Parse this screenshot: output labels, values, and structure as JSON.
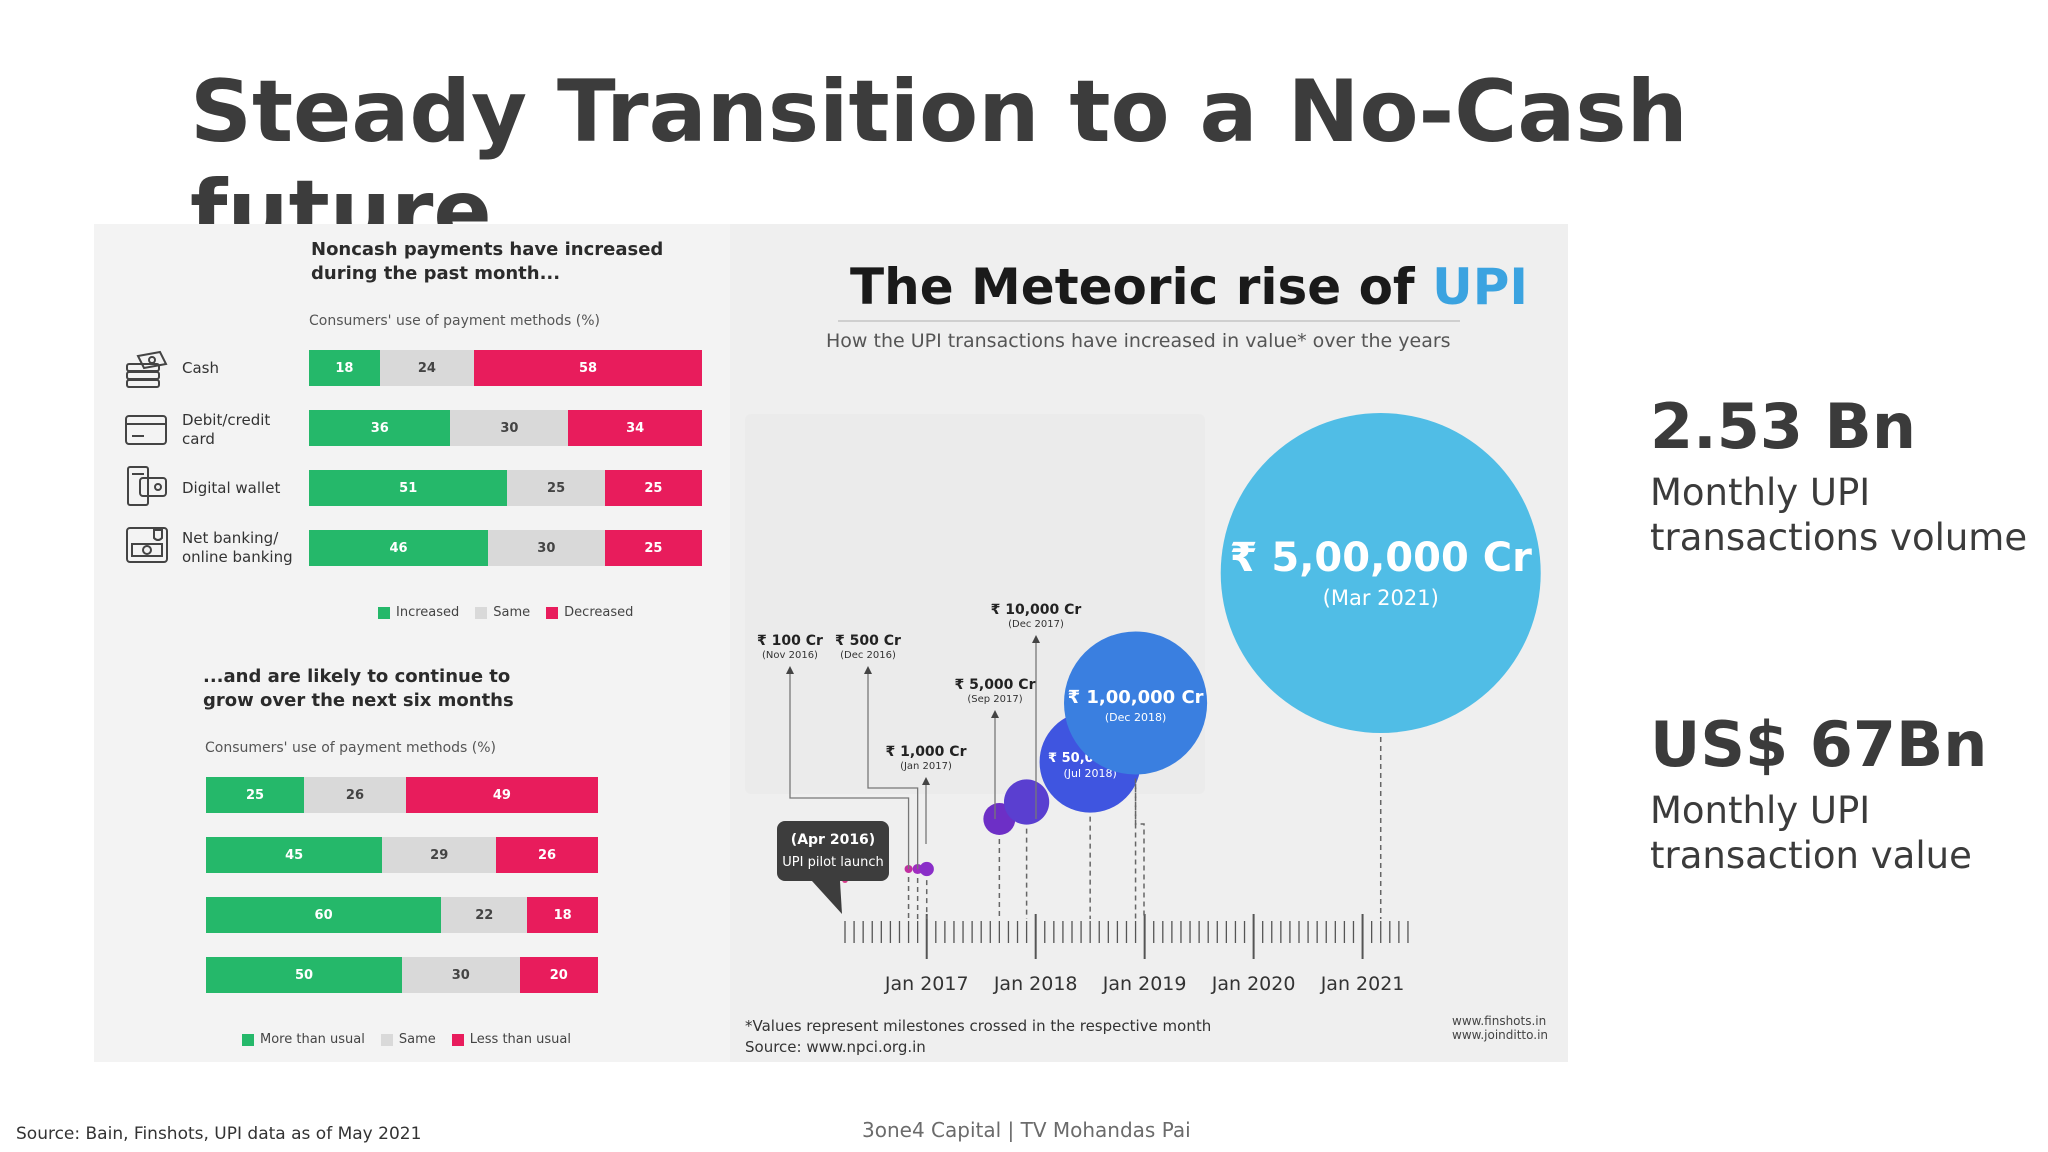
{
  "title": "Steady Transition to a No-Cash future",
  "left": {
    "top_heading": "Noncash payments have increased during the past month...",
    "top_subhead": "Consumers' use of payment methods (%)",
    "rows": [
      {
        "label": "Cash",
        "icon": "cash-icon"
      },
      {
        "label": "Debit/credit card",
        "icon": "card-icon"
      },
      {
        "label": "Digital wallet",
        "icon": "wallet-icon"
      },
      {
        "label": "Net banking/ online banking",
        "icon": "bank-icon"
      }
    ],
    "top_legend": {
      "increased": "Increased",
      "same": "Same",
      "decreased": "Decreased"
    },
    "bottom_heading": "...and are likely to continue to grow over the next six months",
    "bottom_subhead": "Consumers' use of payment methods (%)",
    "bottom_legend": {
      "more": "More than usual",
      "same": "Same",
      "less": "Less than usual"
    },
    "colors": {
      "green": "#25b86a",
      "gray": "#d9d9d9",
      "red": "#e81c5c"
    }
  },
  "chart_data": [
    {
      "type": "bar",
      "stacked": true,
      "title": "Noncash payments have increased during the past month...",
      "subtitle": "Consumers' use of payment methods (%)",
      "categories": [
        "Cash",
        "Debit/credit card",
        "Digital wallet",
        "Net banking/ online banking"
      ],
      "series": [
        {
          "name": "Increased",
          "values": [
            18,
            36,
            51,
            46
          ],
          "color": "#25b86a"
        },
        {
          "name": "Same",
          "values": [
            24,
            30,
            25,
            30
          ],
          "color": "#d9d9d9"
        },
        {
          "name": "Decreased",
          "values": [
            58,
            34,
            25,
            25
          ],
          "color": "#e81c5c"
        }
      ]
    },
    {
      "type": "bar",
      "stacked": true,
      "title": "...and are likely to continue to grow over the next six months",
      "subtitle": "Consumers' use of payment methods (%)",
      "categories": [
        "Cash",
        "Debit/credit card",
        "Digital wallet",
        "Net banking/ online banking"
      ],
      "series": [
        {
          "name": "More than usual",
          "values": [
            25,
            45,
            60,
            50
          ],
          "color": "#25b86a"
        },
        {
          "name": "Same",
          "values": [
            26,
            29,
            22,
            30
          ],
          "color": "#d9d9d9"
        },
        {
          "name": "Less than usual",
          "values": [
            49,
            26,
            18,
            20
          ],
          "color": "#e81c5c"
        }
      ]
    },
    {
      "type": "scatter",
      "title": "The Meteoric rise of UPI",
      "title_accent": "UPI",
      "subtitle": "How the UPI transactions have increased in value* over the years",
      "x_ticks": [
        "Jan 2017",
        "Jan 2018",
        "Jan 2019",
        "Jan 2020",
        "Jan 2021"
      ],
      "xlim": [
        "2016-04",
        "2021-06"
      ],
      "points": [
        {
          "date": "2016-04",
          "value_cr": 0,
          "label": "(Apr 2016)",
          "sublabel": "UPI pilot launch",
          "color": "#d93a8a"
        },
        {
          "date": "2016-11",
          "value_cr": 100,
          "label": "₹ 100 Cr",
          "sublabel": "(Nov 2016)",
          "color": "#c02fa0"
        },
        {
          "date": "2016-12",
          "value_cr": 500,
          "label": "₹ 500 Cr",
          "sublabel": "(Dec 2016)",
          "color": "#a02cc0"
        },
        {
          "date": "2017-01",
          "value_cr": 1000,
          "label": "₹ 1,000 Cr",
          "sublabel": "(Jan 2017)",
          "color": "#8a2ec8"
        },
        {
          "date": "2017-09",
          "value_cr": 5000,
          "label": "₹ 5,000 Cr",
          "sublabel": "(Sep 2017)",
          "color": "#6d2fc6"
        },
        {
          "date": "2017-12",
          "value_cr": 10000,
          "label": "₹ 10,000 Cr",
          "sublabel": "(Dec 2017)",
          "color": "#5a3fd0"
        },
        {
          "date": "2018-07",
          "value_cr": 50000,
          "label": "₹ 50,000 Cr",
          "sublabel": "(Jul 2018)",
          "color": "#3f55e0"
        },
        {
          "date": "2018-12",
          "value_cr": 100000,
          "label": "₹ 1,00,000 Cr",
          "sublabel": "(Dec 2018)",
          "color": "#3a7fe0"
        },
        {
          "date": "2021-03",
          "value_cr": 500000,
          "label": "₹ 5,00,000 Cr",
          "sublabel": "(Mar 2021)",
          "color": "#50bde6"
        }
      ]
    }
  ],
  "upi": {
    "title_main": "The Meteoric rise of ",
    "title_accent": "UPI",
    "subtitle": "How the UPI transactions have increased in value* over the years",
    "footnote1": "*Values represent milestones crossed in the respective month",
    "footnote2": "Source: www.npci.org.in",
    "credit1": "www.finshots.in",
    "credit2": "www.joinditto.in"
  },
  "stats": [
    {
      "value": "2.53 Bn",
      "label1": "Monthly UPI",
      "label2": "transactions volume"
    },
    {
      "value": "US$ 67Bn",
      "label1": "Monthly UPI",
      "label2": "transaction value"
    }
  ],
  "footer": {
    "source": "Source: Bain, Finshots, UPI data as of May 2021",
    "brand": "3one4 Capital  |  TV Mohandas Pai"
  }
}
